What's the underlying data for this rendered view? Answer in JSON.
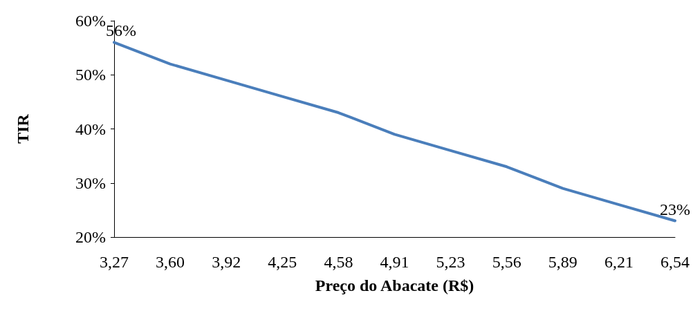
{
  "chart_data": {
    "type": "line",
    "xlabel": "Preço do Abacate (R$)",
    "ylabel": "TIR",
    "categories": [
      "3,27",
      "3,60",
      "3,92",
      "4,25",
      "4,58",
      "4,91",
      "5,23",
      "5,56",
      "5,89",
      "6,21",
      "6,54"
    ],
    "series": [
      {
        "color": "#4a7ebb",
        "values": [
          56,
          52,
          49,
          46,
          43,
          39,
          36,
          33,
          29,
          26,
          23
        ],
        "value_labels": [
          "56%",
          null,
          null,
          null,
          null,
          null,
          null,
          null,
          null,
          null,
          "23%"
        ]
      }
    ],
    "ylim": [
      20,
      60
    ],
    "yticks": [
      {
        "value": 20,
        "label": "20%"
      },
      {
        "value": 30,
        "label": "30%"
      },
      {
        "value": 40,
        "label": "40%"
      },
      {
        "value": 50,
        "label": "50%"
      },
      {
        "value": 60,
        "label": "60%"
      }
    ],
    "grid": false,
    "marker": "none",
    "line_style": "solid"
  }
}
